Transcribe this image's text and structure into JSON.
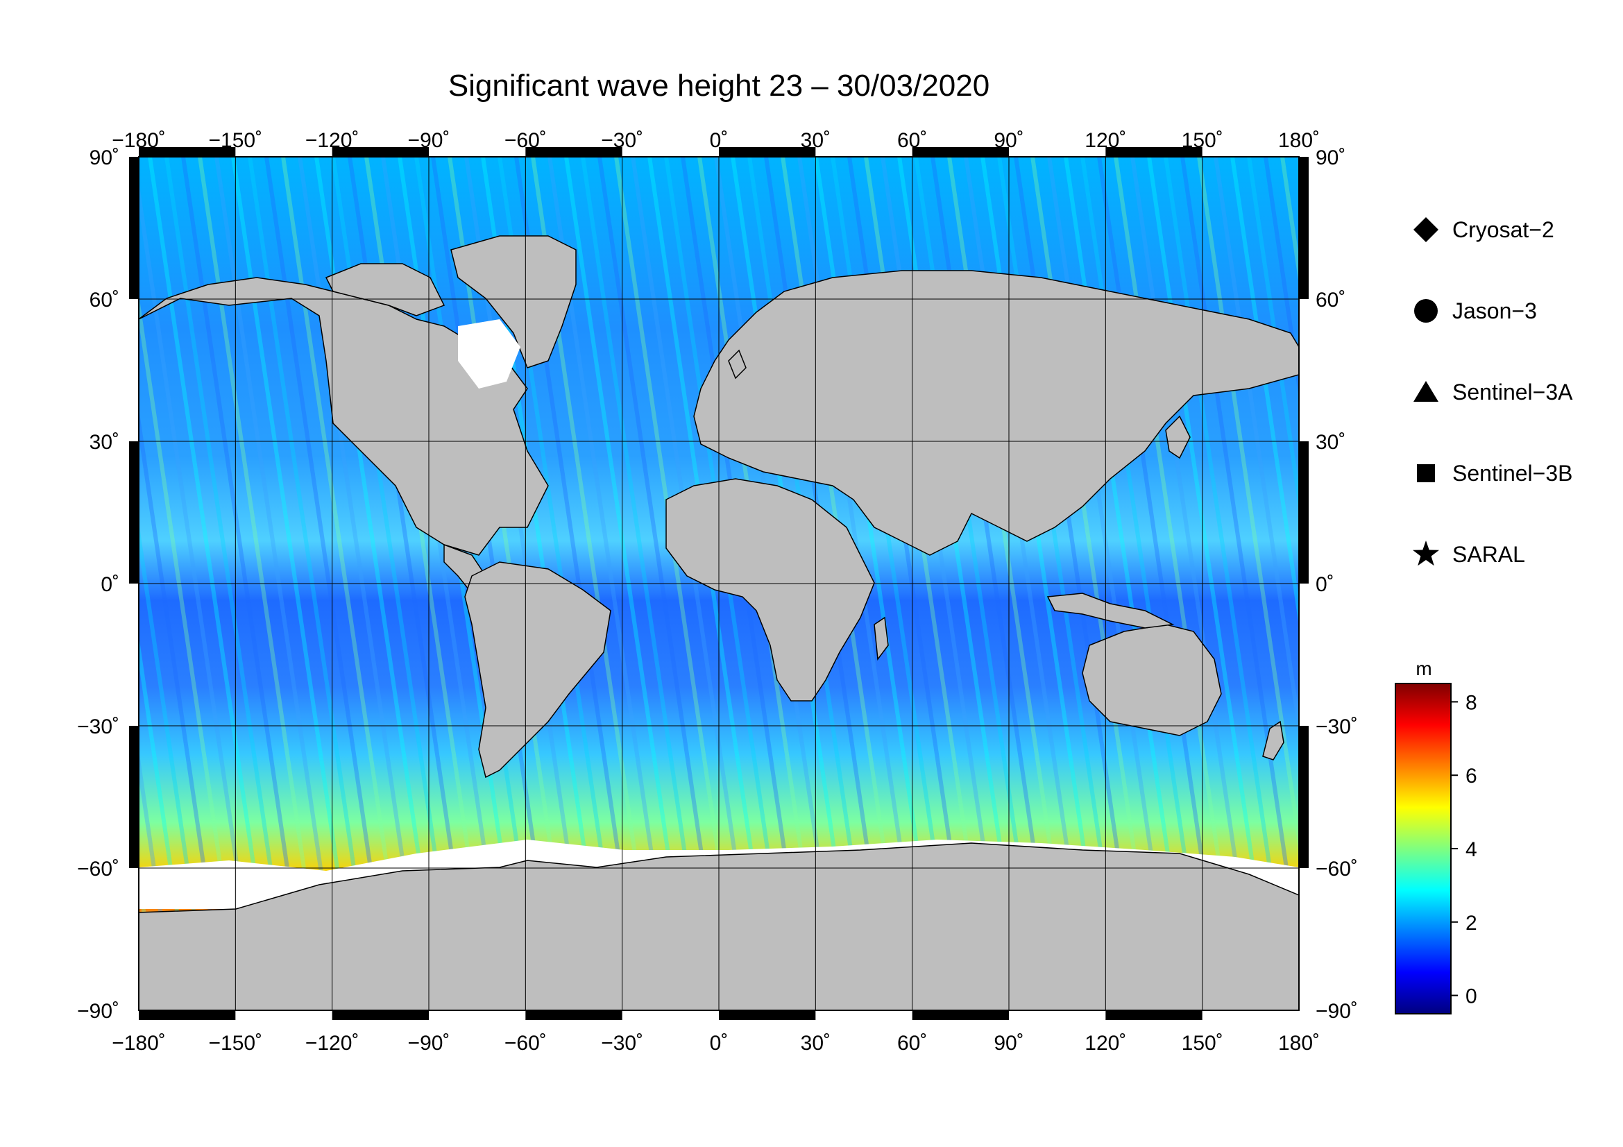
{
  "title": "Significant wave height 23 – 30/03/2020",
  "map": {
    "projection": "equirectangular",
    "lon_range": [
      -180,
      180
    ],
    "lat_range": [
      -90,
      90
    ],
    "lon_ticks": [
      {
        "value": -180,
        "label": "−180˚"
      },
      {
        "value": -150,
        "label": "−150˚"
      },
      {
        "value": -120,
        "label": "−120˚"
      },
      {
        "value": -90,
        "label": "−90˚"
      },
      {
        "value": -60,
        "label": "−60˚"
      },
      {
        "value": -30,
        "label": "−30˚"
      },
      {
        "value": 0,
        "label": "0˚"
      },
      {
        "value": 30,
        "label": "30˚"
      },
      {
        "value": 60,
        "label": "60˚"
      },
      {
        "value": 90,
        "label": "90˚"
      },
      {
        "value": 120,
        "label": "120˚"
      },
      {
        "value": 150,
        "label": "150˚"
      },
      {
        "value": 180,
        "label": "180˚"
      }
    ],
    "lat_ticks": [
      {
        "value": 90,
        "label": "90˚"
      },
      {
        "value": 60,
        "label": "60˚"
      },
      {
        "value": 30,
        "label": "30˚"
      },
      {
        "value": 0,
        "label": "0˚"
      },
      {
        "value": -30,
        "label": "−30˚"
      },
      {
        "value": -60,
        "label": "−60˚"
      },
      {
        "value": -90,
        "label": "−90˚"
      }
    ],
    "land_color": "#bebebe",
    "ice_color": "#ffffff",
    "grid": true
  },
  "legend": {
    "items": [
      {
        "symbol": "diamond",
        "label": "Cryosat−2"
      },
      {
        "symbol": "circle",
        "label": "Jason−3"
      },
      {
        "symbol": "triangle",
        "label": "Sentinel−3A"
      },
      {
        "symbol": "square",
        "label": "Sentinel−3B"
      },
      {
        "symbol": "star",
        "label": "SARAL"
      }
    ]
  },
  "colorbar": {
    "unit": "m",
    "min": -0.5,
    "max": 8.5,
    "ticks": [
      {
        "value": 8,
        "label": "8"
      },
      {
        "value": 6,
        "label": "6"
      },
      {
        "value": 4,
        "label": "4"
      },
      {
        "value": 2,
        "label": "2"
      },
      {
        "value": 0,
        "label": "0"
      }
    ],
    "stops": [
      "#00007f",
      "#0000ff",
      "#007fff",
      "#00ffff",
      "#7fff7f",
      "#ffff00",
      "#ff7f00",
      "#ff0000",
      "#7f0000"
    ]
  }
}
